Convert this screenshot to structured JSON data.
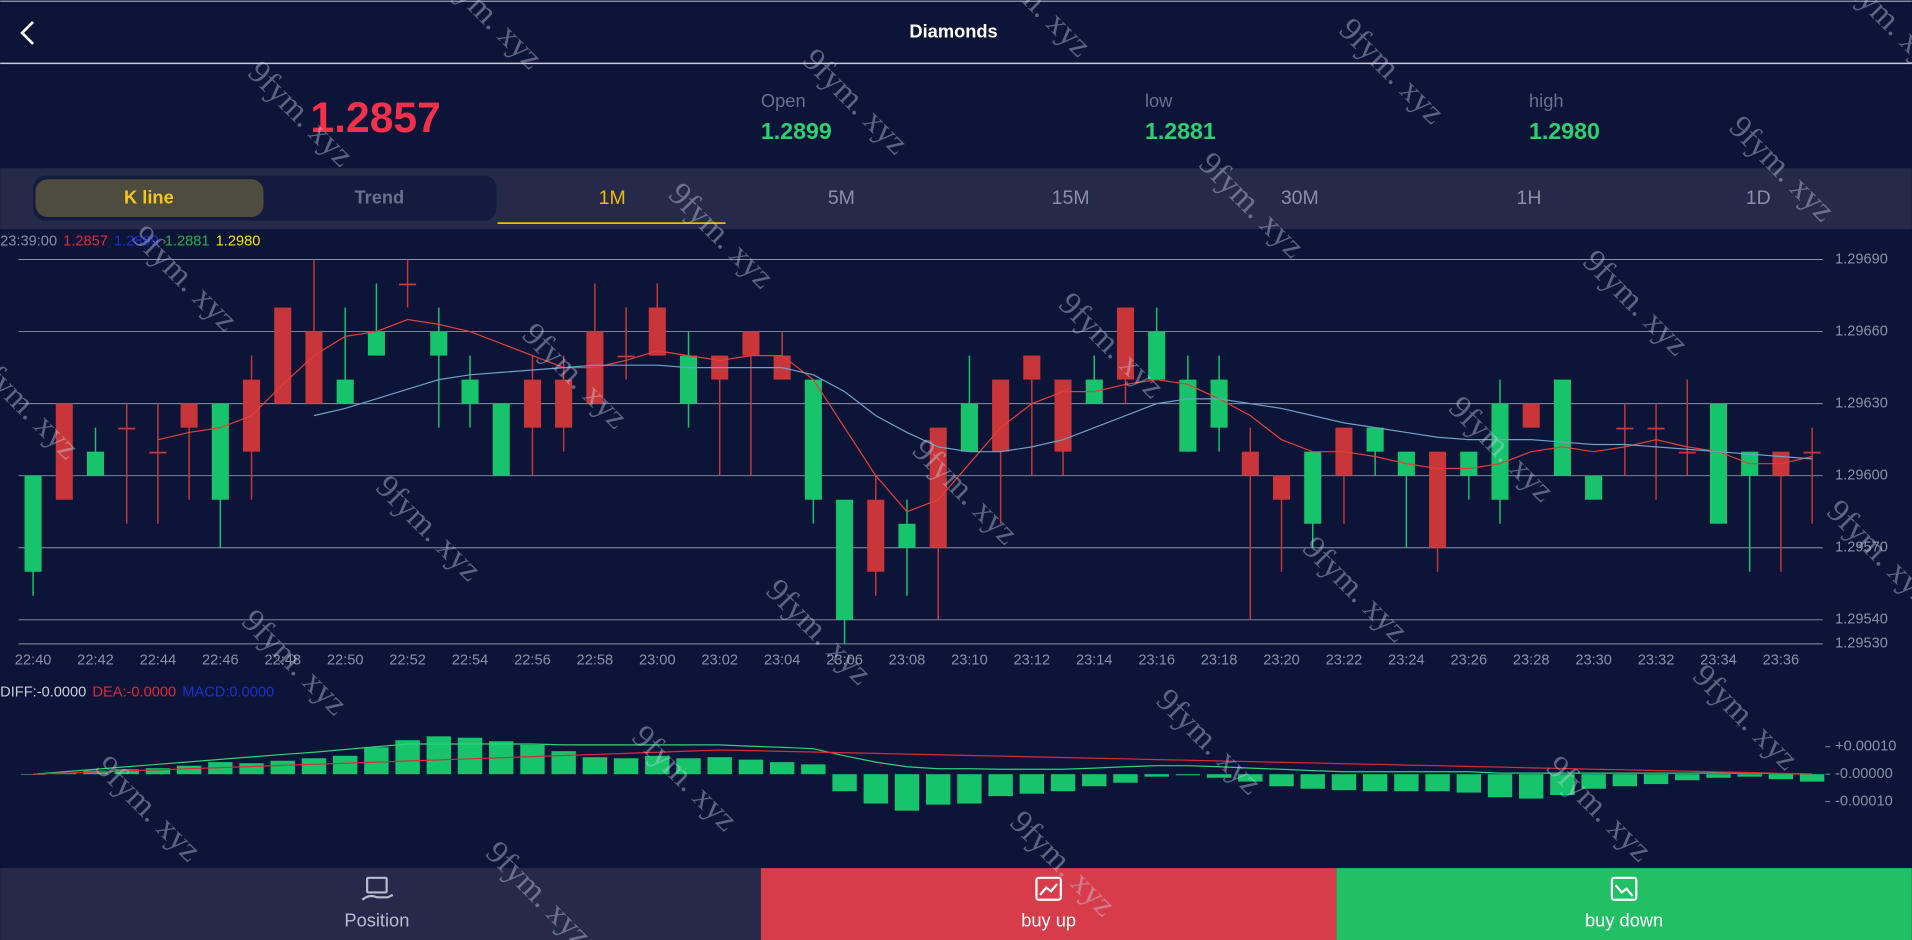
{
  "header": {
    "title": "Diamonds"
  },
  "quote": {
    "price": "1.2857",
    "stats": [
      {
        "label": "Open",
        "value": "1.2899"
      },
      {
        "label": "low",
        "value": "1.2881"
      },
      {
        "label": "high",
        "value": "1.2980"
      }
    ]
  },
  "tabs": {
    "toggle": [
      "K line",
      "Trend"
    ],
    "periods": [
      "1M",
      "5M",
      "15M",
      "30M",
      "1H",
      "1D"
    ]
  },
  "watermark": "9fym. xyz",
  "chart_data": [
    {
      "type": "candlestick",
      "info": {
        "time": "23:39:00",
        "items": [
          {
            "text": "1.2857",
            "color": "#e0283c"
          },
          {
            "text": "1.2899",
            "color": "#1c2fd0"
          },
          {
            "text": "1.2881",
            "color": "#1fae4f"
          },
          {
            "text": "1.2980",
            "color": "#f2e600"
          }
        ]
      },
      "categories": [
        "22:40",
        null,
        "22:42",
        null,
        "22:44",
        null,
        "22:46",
        null,
        "22:48",
        null,
        "22:50",
        null,
        "22:52",
        null,
        "22:54",
        null,
        "22:56",
        null,
        "22:58",
        null,
        "23:00",
        null,
        "23:02",
        null,
        "23:04",
        null,
        "23:06",
        null,
        "23:08",
        null,
        "23:10",
        null,
        "23:12",
        null,
        "23:14",
        null,
        "23:16",
        null,
        "23:18",
        null,
        "23:20",
        null,
        "23:22",
        null,
        "23:24",
        null,
        "23:26",
        null,
        "23:28",
        null,
        "23:30",
        null,
        "23:32",
        null,
        "23:34",
        null,
        "23:36",
        null
      ],
      "open": [
        1.296,
        1.2959,
        1.2961,
        1.2962,
        1.2961,
        1.2962,
        1.2963,
        1.2961,
        1.2963,
        1.2963,
        1.2964,
        1.2966,
        1.2968,
        1.2966,
        1.2964,
        1.2963,
        1.2962,
        1.2962,
        1.2963,
        1.2965,
        1.2965,
        1.2965,
        1.2964,
        1.2965,
        1.2964,
        1.2964,
        1.2959,
        1.2956,
        1.2958,
        1.2957,
        1.2963,
        1.2961,
        1.2964,
        1.2961,
        1.2964,
        1.2964,
        1.2966,
        1.2964,
        1.2964,
        1.296,
        1.2959,
        1.2961,
        1.296,
        1.2962,
        1.2961,
        1.2957,
        1.2961,
        1.2963,
        1.2962,
        1.2964,
        1.296,
        1.2962,
        1.2962,
        1.2961,
        1.2963,
        1.2961,
        1.296,
        1.2961
      ],
      "high": [
        1.296,
        1.2963,
        1.2962,
        1.2963,
        1.2963,
        1.2963,
        1.2963,
        1.2965,
        1.2967,
        1.2969,
        1.2967,
        1.2968,
        1.2969,
        1.2967,
        1.2965,
        1.2963,
        1.2965,
        1.2965,
        1.2968,
        1.2967,
        1.2968,
        1.2966,
        1.2965,
        1.2966,
        1.2966,
        1.2964,
        1.2959,
        1.296,
        1.2959,
        1.2962,
        1.2965,
        1.2964,
        1.2965,
        1.2964,
        1.2965,
        1.2967,
        1.2967,
        1.2965,
        1.2965,
        1.2962,
        1.296,
        1.2961,
        1.2962,
        1.2962,
        1.2961,
        1.2961,
        1.2961,
        1.2964,
        1.2963,
        1.2964,
        1.296,
        1.2963,
        1.2963,
        1.2964,
        1.2963,
        1.2961,
        1.2961,
        1.2962
      ],
      "low": [
        1.2955,
        1.2959,
        1.296,
        1.2958,
        1.2958,
        1.2959,
        1.2957,
        1.2959,
        1.2963,
        1.2963,
        1.2963,
        1.2965,
        1.2967,
        1.2962,
        1.2962,
        1.296,
        1.296,
        1.2961,
        1.2963,
        1.2964,
        1.2965,
        1.2962,
        1.296,
        1.296,
        1.2964,
        1.2958,
        1.2953,
        1.2955,
        1.2955,
        1.2954,
        1.2961,
        1.2958,
        1.296,
        1.296,
        1.2963,
        1.2963,
        1.2964,
        1.2961,
        1.2961,
        1.2954,
        1.2956,
        1.2957,
        1.2958,
        1.296,
        1.2957,
        1.2956,
        1.2959,
        1.2958,
        1.2962,
        1.296,
        1.2959,
        1.296,
        1.2959,
        1.296,
        1.2958,
        1.2956,
        1.2956,
        1.2958
      ],
      "close": [
        1.2956,
        1.2963,
        1.296,
        1.2962,
        1.2961,
        1.2963,
        1.2959,
        1.2964,
        1.2967,
        1.2966,
        1.2963,
        1.2965,
        1.2968,
        1.2965,
        1.2963,
        1.296,
        1.2964,
        1.2964,
        1.2966,
        1.2965,
        1.2967,
        1.2963,
        1.2965,
        1.2966,
        1.2965,
        1.2959,
        1.2954,
        1.2959,
        1.2957,
        1.2962,
        1.2961,
        1.2964,
        1.2965,
        1.2964,
        1.2963,
        1.2967,
        1.2964,
        1.2961,
        1.2962,
        1.2961,
        1.296,
        1.2958,
        1.2962,
        1.2961,
        1.296,
        1.2961,
        1.296,
        1.2959,
        1.2963,
        1.296,
        1.2959,
        1.2962,
        1.2962,
        1.2961,
        1.2958,
        1.296,
        1.2961,
        1.2961
      ],
      "up_color": "#c8363a",
      "down_color": "#17c46b",
      "ma_lines": [
        {
          "color": "#e0403a",
          "values": [
            null,
            null,
            null,
            null,
            1.29615,
            1.29618,
            1.2962,
            1.29625,
            1.29638,
            1.2965,
            1.29658,
            1.2966,
            1.29665,
            1.29663,
            1.2966,
            1.29655,
            1.2965,
            1.29645,
            1.29645,
            1.29648,
            1.29652,
            1.2965,
            1.29648,
            1.2965,
            1.2965,
            1.2964,
            1.2962,
            1.296,
            1.29585,
            1.2959,
            1.29605,
            1.2962,
            1.2963,
            1.29635,
            1.29635,
            1.29638,
            1.2964,
            1.29638,
            1.29632,
            1.29625,
            1.29615,
            1.2961,
            1.2961,
            1.29608,
            1.29605,
            1.29603,
            1.29603,
            1.29605,
            1.2961,
            1.29612,
            1.2961,
            1.29612,
            1.29615,
            1.29612,
            1.2961,
            1.29605,
            1.29605,
            1.29608
          ]
        },
        {
          "color": "#6fa0c8",
          "values": [
            null,
            null,
            null,
            null,
            null,
            null,
            null,
            null,
            null,
            1.29625,
            1.29628,
            1.29632,
            1.29636,
            1.2964,
            1.29642,
            1.29643,
            1.29644,
            1.29645,
            1.29646,
            1.29646,
            1.29646,
            1.29645,
            1.29645,
            1.29645,
            1.29645,
            1.29642,
            1.29635,
            1.29625,
            1.29618,
            1.29612,
            1.2961,
            1.2961,
            1.29612,
            1.29615,
            1.2962,
            1.29625,
            1.2963,
            1.29632,
            1.29632,
            1.2963,
            1.29628,
            1.29625,
            1.29622,
            1.2962,
            1.29618,
            1.29616,
            1.29615,
            1.29615,
            1.29615,
            1.29614,
            1.29613,
            1.29613,
            1.29612,
            1.29611,
            1.2961,
            1.29609,
            1.29608,
            1.29607
          ]
        }
      ],
      "ylim": [
        1.29527,
        1.29695
      ],
      "yticks": [
        {
          "value": 1.2969,
          "label": "1.29690"
        },
        {
          "value": 1.2966,
          "label": "1.29660"
        },
        {
          "value": 1.2963,
          "label": "1.29630"
        },
        {
          "value": 1.296,
          "label": "1.29600"
        },
        {
          "value": 1.2957,
          "label": "1.29570"
        },
        {
          "value": 1.2954,
          "label": "1.29540"
        },
        {
          "value": 1.2953,
          "label": "1.29530"
        }
      ],
      "grid": true
    },
    {
      "type": "macd",
      "labels": [
        {
          "text": "DIFF:-0.0000",
          "color": "#c9ccd8"
        },
        {
          "text": "DEA:-0.0000",
          "color": "#e0283c"
        },
        {
          "text": "MACD:0.0000",
          "color": "#1c2fd0"
        }
      ],
      "histogram": {
        "color": "#17c46b",
        "values": [
          0,
          4e-06,
          1.3e-05,
          1.8e-05,
          2.2e-05,
          3.1e-05,
          4.4e-05,
          4e-05,
          4.9e-05,
          5.8e-05,
          6.7e-05,
          9.8e-05,
          0.000124,
          0.000138,
          0.000133,
          0.00012,
          0.000107,
          8.4e-05,
          6.2e-05,
          5.8e-05,
          6.7e-05,
          5.8e-05,
          6.2e-05,
          5.3e-05,
          4.4e-05,
          3.6e-05,
          -6.2e-05,
          -0.000107,
          -0.000133,
          -0.000111,
          -0.000107,
          -8e-05,
          -7.1e-05,
          -6.2e-05,
          -4.4e-05,
          -3.1e-05,
          -9e-06,
          -4e-06,
          -1.3e-05,
          -2.7e-05,
          -4.4e-05,
          -5.3e-05,
          -5.8e-05,
          -6.2e-05,
          -6.2e-05,
          -6.2e-05,
          -6.7e-05,
          -8.4e-05,
          -8.9e-05,
          -7.6e-05,
          -5.3e-05,
          -4.4e-05,
          -3.6e-05,
          -2.2e-05,
          -1.3e-05,
          -9e-06,
          -1.8e-05,
          -2.7e-05
        ]
      },
      "diff": {
        "color": "#2ed27a",
        "values": [
          0,
          9e-06,
          1.8e-05,
          2.7e-05,
          3.6e-05,
          4.5e-05,
          5.4e-05,
          6.3e-05,
          7.2e-05,
          8e-05,
          9e-05,
          0.0001,
          0.00011,
          0.00011,
          0.00011,
          0.00011,
          0.00011,
          0.000107,
          0.000107,
          0.000107,
          0.000107,
          0.000107,
          0.000107,
          0.000102,
          9.8e-05,
          9.3e-05,
          6.7e-05,
          4.4e-05,
          2.7e-05,
          2e-05,
          2e-05,
          1.8e-05,
          1.8e-05,
          1.8e-05,
          2.2e-05,
          2.7e-05,
          3.1e-05,
          3.1e-05,
          2.7e-05,
          2.2e-05,
          1.8e-05,
          1.3e-05,
          9e-06,
          9e-06,
          9e-06,
          9e-06,
          9e-06,
          4e-06,
          4e-06,
          4e-06,
          4e-06,
          4e-06,
          4e-06,
          4e-06,
          4e-06,
          4e-06,
          2e-06,
          0
        ]
      },
      "dea": {
        "color": "#e0283c",
        "values": [
          0,
          4e-06,
          8e-06,
          1.2e-05,
          1.6e-05,
          2e-05,
          2.4e-05,
          2.8e-05,
          3.2e-05,
          3.6e-05,
          4e-05,
          4.4e-05,
          4.8e-05,
          5.2e-05,
          5.6e-05,
          6e-05,
          6.4e-05,
          6.8e-05,
          7.2e-05,
          7.6e-05,
          8e-05,
          8.4e-05,
          8.8e-05,
          8.6e-05,
          8.3e-05,
          8.1e-05,
          7.8e-05,
          7.6e-05,
          7.3e-05,
          7.1e-05,
          6.8e-05,
          6.6e-05,
          6.3e-05,
          6.1e-05,
          5.8e-05,
          5.6e-05,
          5.3e-05,
          5.1e-05,
          4.8e-05,
          4.6e-05,
          4.3e-05,
          4.1e-05,
          3.8e-05,
          3.6e-05,
          3.3e-05,
          3.1e-05,
          2.8e-05,
          2.6e-05,
          2.3e-05,
          2.1e-05,
          1.8e-05,
          1.6e-05,
          1.3e-05,
          1.1e-05,
          8e-06,
          6e-06,
          3e-06,
          1e-06
        ]
      },
      "ylim": [
        -0.00028,
        0.00024
      ],
      "yticks": [
        {
          "value": 0.0001,
          "label": "+0.00010"
        },
        {
          "value": 0,
          "label": "-0.00000"
        },
        {
          "value": -0.0001,
          "label": "-0.00010"
        }
      ]
    }
  ],
  "footer": {
    "buttons": [
      "Position",
      "buy up",
      "buy down"
    ]
  }
}
